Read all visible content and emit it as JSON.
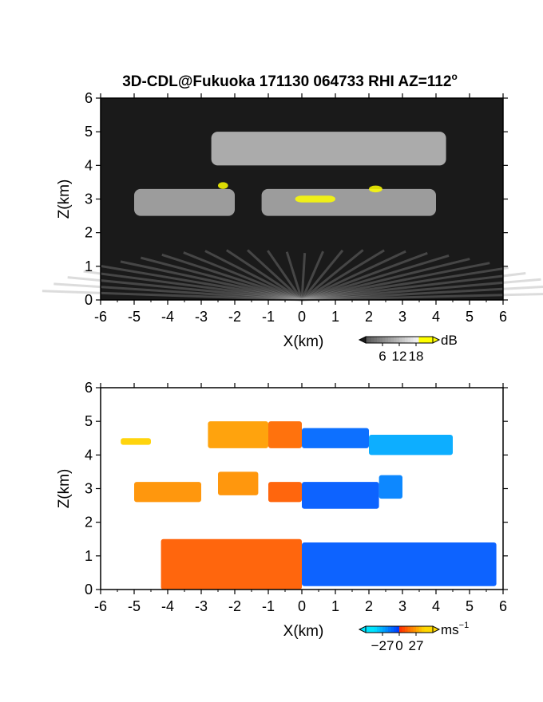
{
  "chart_data": [
    {
      "type": "heatmap",
      "title": "3D-CDL@Fukuoka 171130 064733 RHI AZ=112",
      "title_superscript": "o",
      "xlabel": "X(km)",
      "ylabel": "Z(km)",
      "xlim": [
        -6,
        6
      ],
      "ylim": [
        0,
        6
      ],
      "xticks": [
        "-6",
        "-5",
        "-4",
        "-3",
        "-2",
        "-1",
        "0",
        "1",
        "2",
        "3",
        "4",
        "5",
        "6"
      ],
      "yticks": [
        "0",
        "1",
        "2",
        "3",
        "4",
        "5",
        "6"
      ],
      "colorbar": {
        "unit": "dB",
        "ticks": [
          "6",
          "12",
          "18"
        ],
        "range": [
          0,
          24
        ]
      },
      "colors": {
        "background": "#1a1a1a",
        "weak": "#555555",
        "strong": "#f0f0f0",
        "peak": "#ffff00"
      },
      "regions": [
        {
          "x": [
            -2.7,
            4.3
          ],
          "z": [
            4.0,
            5.0
          ],
          "value": 13
        },
        {
          "x": [
            -5.0,
            -2.0
          ],
          "z": [
            2.5,
            3.3
          ],
          "value": 11
        },
        {
          "x": [
            -1.2,
            4.0
          ],
          "z": [
            2.5,
            3.3
          ],
          "value": 11
        },
        {
          "x": [
            -2.5,
            -2.2
          ],
          "z": [
            3.3,
            3.5
          ],
          "value": 20
        },
        {
          "x": [
            -0.2,
            1.0
          ],
          "z": [
            2.9,
            3.1
          ],
          "value": 20
        },
        {
          "x": [
            2.0,
            2.4
          ],
          "z": [
            3.2,
            3.4
          ],
          "value": 20
        }
      ]
    },
    {
      "type": "heatmap",
      "xlabel": "X(km)",
      "ylabel": "Z(km)",
      "xlim": [
        -6,
        6
      ],
      "ylim": [
        0,
        6
      ],
      "xticks": [
        "-6",
        "-5",
        "-4",
        "-3",
        "-2",
        "-1",
        "0",
        "1",
        "2",
        "3",
        "4",
        "5",
        "6"
      ],
      "yticks": [
        "0",
        "1",
        "2",
        "3",
        "4",
        "5",
        "6"
      ],
      "colorbar": {
        "unit": "ms",
        "unit_superscript": "−1",
        "ticks": [
          "−27",
          "0",
          "27"
        ],
        "range": [
          -36,
          36
        ]
      },
      "colors": {
        "neg_far": "#00e5ff",
        "neg_near": "#0033ff",
        "pos_near": "#ff2a00",
        "pos_far": "#ffd800"
      },
      "regions": [
        {
          "x": [
            -2.8,
            -1.0
          ],
          "z": [
            4.2,
            5.0
          ],
          "value": 18
        },
        {
          "x": [
            -1.0,
            0.0
          ],
          "z": [
            4.2,
            5.0
          ],
          "value": 10
        },
        {
          "x": [
            0.0,
            2.0
          ],
          "z": [
            4.2,
            4.8
          ],
          "value": -8
        },
        {
          "x": [
            2.0,
            4.5
          ],
          "z": [
            4.0,
            4.6
          ],
          "value": -18
        },
        {
          "x": [
            -5.4,
            -4.5
          ],
          "z": [
            4.3,
            4.5
          ],
          "value": 26
        },
        {
          "x": [
            -5.0,
            -3.0
          ],
          "z": [
            2.6,
            3.2
          ],
          "value": 16
        },
        {
          "x": [
            -2.5,
            -1.3
          ],
          "z": [
            2.8,
            3.5
          ],
          "value": 16
        },
        {
          "x": [
            -1.0,
            0.0
          ],
          "z": [
            2.6,
            3.2
          ],
          "value": 8
        },
        {
          "x": [
            0.0,
            2.3
          ],
          "z": [
            2.4,
            3.2
          ],
          "value": -6
        },
        {
          "x": [
            2.3,
            3.0
          ],
          "z": [
            2.7,
            3.4
          ],
          "value": -12
        },
        {
          "x": [
            -4.2,
            0.0
          ],
          "z": [
            0.0,
            1.5
          ],
          "value": 8
        },
        {
          "x": [
            0.0,
            5.8
          ],
          "z": [
            0.1,
            1.4
          ],
          "value": -6
        }
      ]
    }
  ]
}
